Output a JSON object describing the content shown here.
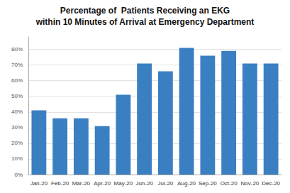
{
  "chart_data": {
    "type": "bar",
    "title": "Percentage of  Patients Receiving an EKG",
    "subtitle": "within 10 Minutes of Arrival at Emergency Department",
    "categories": [
      "Jan-20",
      "Feb-20",
      "Mar-20",
      "Apr-20",
      "May-20",
      "Jun-20",
      "Jul-20",
      "Aug-20",
      "Sep-20",
      "Oct-20",
      "Nov-20",
      "Dec-20"
    ],
    "values": [
      0.41,
      0.36,
      0.36,
      0.31,
      0.51,
      0.71,
      0.66,
      0.81,
      0.76,
      0.79,
      0.71,
      0.71
    ],
    "color": "#3a7fc1",
    "ylim": [
      0,
      0.88
    ],
    "yticks": [
      {
        "value": 0.0,
        "label": "0%"
      },
      {
        "value": 0.1,
        "label": "10%"
      },
      {
        "value": 0.2,
        "label": "20%"
      },
      {
        "value": 0.3,
        "label": "30%"
      },
      {
        "value": 0.4,
        "label": "40%"
      },
      {
        "value": 0.5,
        "label": "50%"
      },
      {
        "value": 0.6,
        "label": "60%"
      },
      {
        "value": 0.7,
        "label": "70%"
      },
      {
        "value": 0.8,
        "label": "80%"
      }
    ],
    "grid": true
  }
}
